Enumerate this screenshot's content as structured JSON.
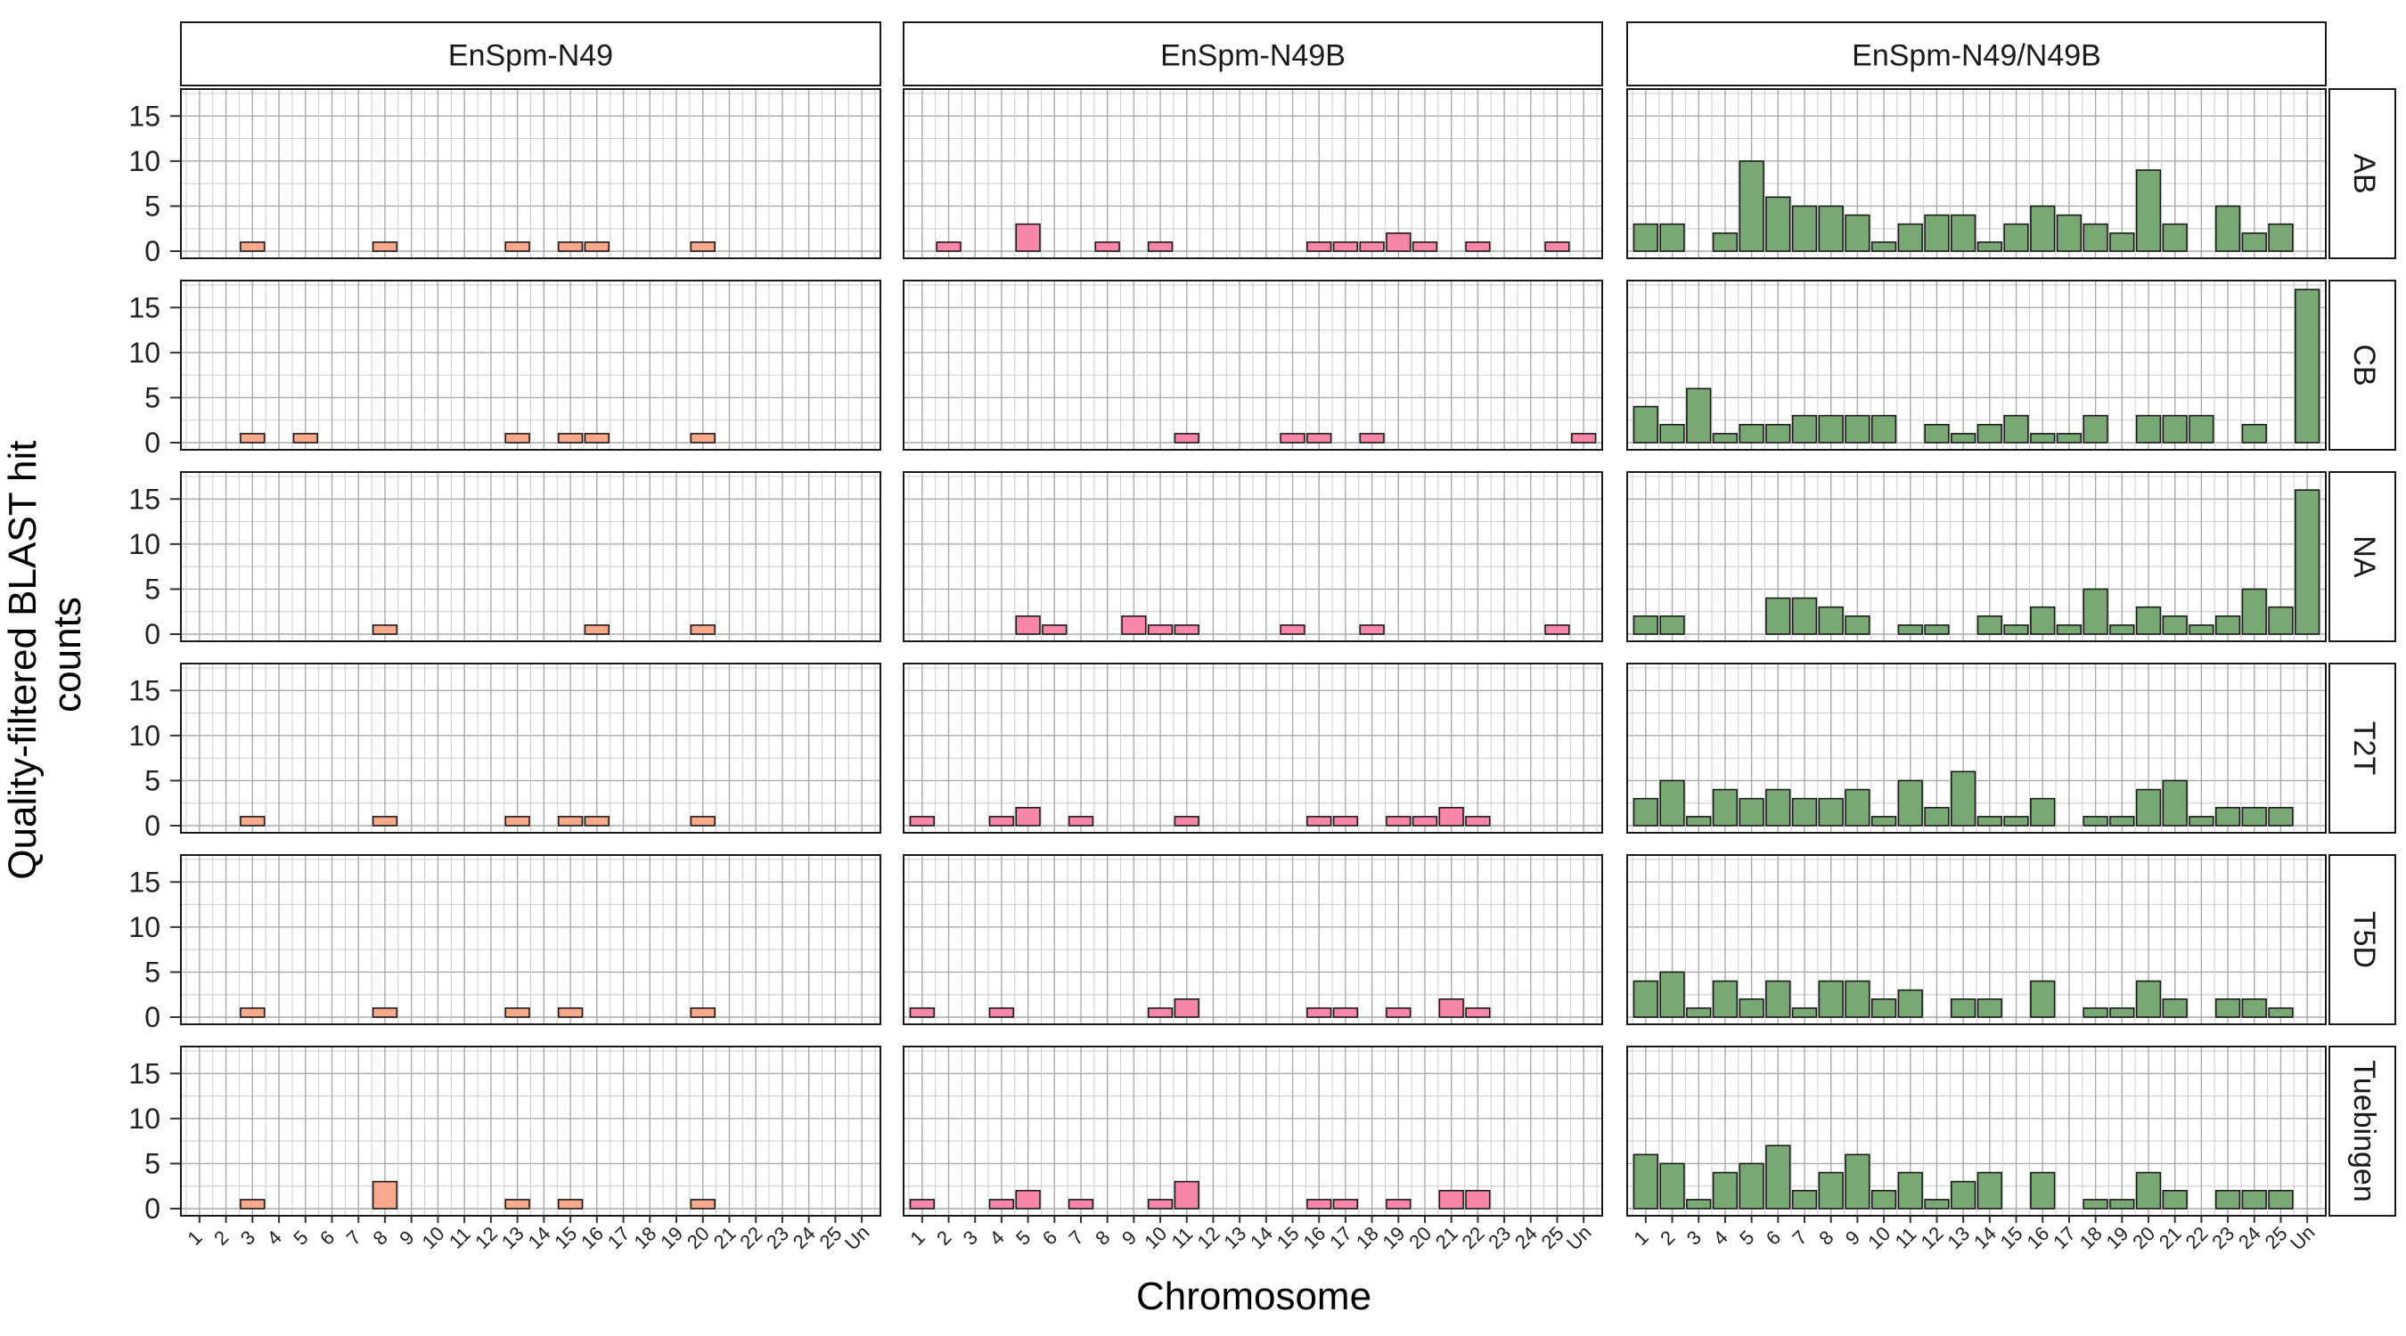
{
  "chart_data": {
    "type": "bar",
    "layout": "facet_grid",
    "xlabel": "Chromosome",
    "ylabel": "Quality-filtered BLAST hit counts",
    "ylim": [
      0,
      17.5
    ],
    "yticks": [
      0,
      5,
      10,
      15
    ],
    "grid": true,
    "categories": [
      "1",
      "2",
      "3",
      "4",
      "5",
      "6",
      "7",
      "8",
      "9",
      "10",
      "11",
      "12",
      "13",
      "14",
      "15",
      "16",
      "17",
      "18",
      "19",
      "20",
      "21",
      "22",
      "23",
      "24",
      "25",
      "Un"
    ],
    "columns": [
      {
        "name": "EnSpm-N49",
        "color": "#f9a98b"
      },
      {
        "name": "EnSpm-N49B",
        "color": "#f786a8"
      },
      {
        "name": "EnSpm-N49/N49B",
        "color": "#7aa874"
      }
    ],
    "rows": [
      "AB",
      "CB",
      "NA",
      "T2T",
      "T5D",
      "Tuebingen"
    ],
    "values": {
      "AB": [
        [
          0,
          0,
          1,
          0,
          0,
          0,
          0,
          1,
          0,
          0,
          0,
          0,
          1,
          0,
          1,
          1,
          0,
          0,
          0,
          1,
          0,
          0,
          0,
          0,
          0,
          0
        ],
        [
          0,
          1,
          0,
          0,
          3,
          0,
          0,
          1,
          0,
          1,
          0,
          0,
          0,
          0,
          0,
          1,
          1,
          1,
          2,
          1,
          0,
          1,
          0,
          0,
          1,
          0
        ],
        [
          3,
          3,
          0,
          2,
          10,
          6,
          5,
          5,
          4,
          1,
          3,
          4,
          4,
          1,
          3,
          5,
          4,
          3,
          2,
          9,
          3,
          0,
          5,
          2,
          3,
          0
        ]
      ],
      "CB": [
        [
          0,
          0,
          1,
          0,
          1,
          0,
          0,
          0,
          0,
          0,
          0,
          0,
          1,
          0,
          1,
          1,
          0,
          0,
          0,
          1,
          0,
          0,
          0,
          0,
          0,
          0
        ],
        [
          0,
          0,
          0,
          0,
          0,
          0,
          0,
          0,
          0,
          0,
          1,
          0,
          0,
          0,
          1,
          1,
          0,
          1,
          0,
          0,
          0,
          0,
          0,
          0,
          0,
          1
        ],
        [
          4,
          2,
          6,
          1,
          2,
          2,
          3,
          3,
          3,
          3,
          0,
          2,
          1,
          2,
          3,
          1,
          1,
          3,
          0,
          3,
          3,
          3,
          0,
          2,
          0,
          17
        ]
      ],
      "NA": [
        [
          0,
          0,
          0,
          0,
          0,
          0,
          0,
          1,
          0,
          0,
          0,
          0,
          0,
          0,
          0,
          1,
          0,
          0,
          0,
          1,
          0,
          0,
          0,
          0,
          0,
          0
        ],
        [
          0,
          0,
          0,
          0,
          2,
          1,
          0,
          0,
          2,
          1,
          1,
          0,
          0,
          0,
          1,
          0,
          0,
          1,
          0,
          0,
          0,
          0,
          0,
          0,
          1,
          0
        ],
        [
          2,
          2,
          0,
          0,
          0,
          4,
          4,
          3,
          2,
          0,
          1,
          1,
          0,
          2,
          1,
          3,
          1,
          5,
          1,
          3,
          2,
          1,
          2,
          5,
          3,
          16
        ]
      ],
      "T2T": [
        [
          0,
          0,
          1,
          0,
          0,
          0,
          0,
          1,
          0,
          0,
          0,
          0,
          1,
          0,
          1,
          1,
          0,
          0,
          0,
          1,
          0,
          0,
          0,
          0,
          0,
          0
        ],
        [
          1,
          0,
          0,
          1,
          2,
          0,
          1,
          0,
          0,
          0,
          1,
          0,
          0,
          0,
          0,
          1,
          1,
          0,
          1,
          1,
          2,
          1,
          0,
          0,
          0,
          0
        ],
        [
          3,
          5,
          1,
          4,
          3,
          4,
          3,
          3,
          4,
          1,
          5,
          2,
          6,
          1,
          1,
          3,
          0,
          1,
          1,
          4,
          5,
          1,
          2,
          2,
          2,
          0
        ]
      ],
      "T5D": [
        [
          0,
          0,
          1,
          0,
          0,
          0,
          0,
          1,
          0,
          0,
          0,
          0,
          1,
          0,
          1,
          0,
          0,
          0,
          0,
          1,
          0,
          0,
          0,
          0,
          0,
          0
        ],
        [
          1,
          0,
          0,
          1,
          0,
          0,
          0,
          0,
          0,
          1,
          2,
          0,
          0,
          0,
          0,
          1,
          1,
          0,
          1,
          0,
          2,
          1,
          0,
          0,
          0,
          0
        ],
        [
          4,
          5,
          1,
          4,
          2,
          4,
          1,
          4,
          4,
          2,
          3,
          0,
          2,
          2,
          0,
          4,
          0,
          1,
          1,
          4,
          2,
          0,
          2,
          2,
          1,
          0
        ]
      ],
      "Tuebingen": [
        [
          0,
          0,
          1,
          0,
          0,
          0,
          0,
          3,
          0,
          0,
          0,
          0,
          1,
          0,
          1,
          0,
          0,
          0,
          0,
          1,
          0,
          0,
          0,
          0,
          0,
          0
        ],
        [
          1,
          0,
          0,
          1,
          2,
          0,
          1,
          0,
          0,
          1,
          3,
          0,
          0,
          0,
          0,
          1,
          1,
          0,
          1,
          0,
          2,
          2,
          0,
          0,
          0,
          0
        ],
        [
          6,
          5,
          1,
          4,
          5,
          7,
          2,
          4,
          6,
          2,
          4,
          1,
          3,
          4,
          0,
          4,
          0,
          1,
          1,
          4,
          2,
          0,
          2,
          2,
          2,
          0
        ]
      ]
    }
  }
}
